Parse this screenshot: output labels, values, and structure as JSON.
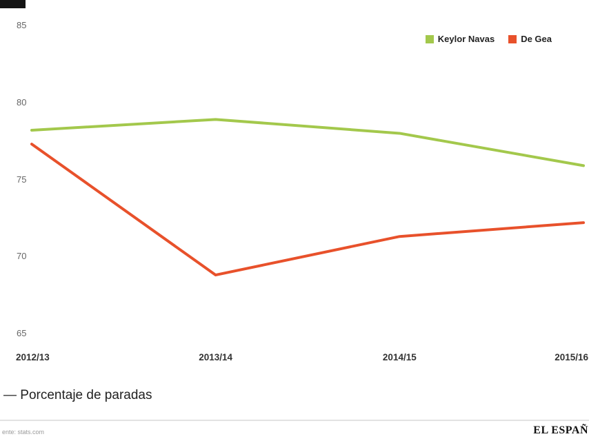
{
  "chart_data": {
    "type": "line",
    "title": "",
    "xlabel": "",
    "ylabel": "",
    "grid": false,
    "legend_position": "top-right",
    "categories": [
      "2012/13",
      "2013/14",
      "2014/15",
      "2015/16"
    ],
    "series": [
      {
        "name": "Keylor Navas",
        "color": "#a3c84c",
        "values": [
          78.2,
          78.9,
          78.0,
          75.9
        ]
      },
      {
        "name": "De Gea",
        "color": "#e8512b",
        "values": [
          77.3,
          68.8,
          71.3,
          72.2
        ]
      }
    ],
    "ylim": [
      65,
      85
    ],
    "yticks": [
      85,
      80,
      75,
      70,
      65
    ],
    "series_label": "— Porcentaje de paradas"
  },
  "footer": {
    "source": "ente: stats.com",
    "brand": "EL ESPAÑ"
  }
}
